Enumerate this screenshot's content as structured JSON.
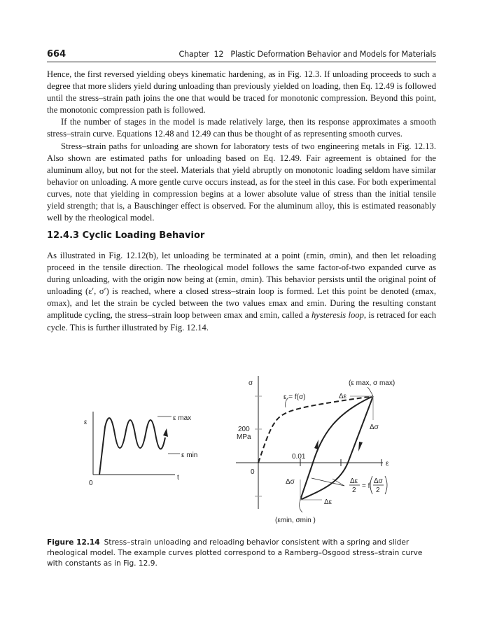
{
  "header": {
    "page_number": "664",
    "chapter": "Chapter  12   Plastic Deformation Behavior and Models for Materials"
  },
  "paragraphs": [
    "Hence, the first reversed yielding obeys kinematic hardening, as in Fig. 12.3. If unloading proceeds to such a degree that more sliders yield during unloading than previously yielded on loading, then Eq. 12.49 is followed until the stress–strain path joins the one that would be traced for monotonic compression. Beyond this point, the monotonic compression path is followed.",
    "If the number of stages in the model is made relatively large, then its response approximates a smooth stress–strain curve. Equations 12.48 and 12.49 can thus be thought of as representing smooth curves.",
    "Stress–strain paths for unloading are shown for laboratory tests of two engineering metals in Fig. 12.13. Also shown are estimated paths for unloading based on Eq. 12.49. Fair agreement is obtained for the aluminum alloy, but not for the steel. Materials that yield abruptly on monotonic loading seldom have similar behavior on unloading. A more gentle curve occurs instead, as for the steel in this case. For both experimental curves, note that yielding in compression begins at a lower absolute value of stress than the initial tensile yield strength; that is, a Bauschinger effect is observed. For the aluminum alloy, this is estimated reasonably well by the rheological model."
  ],
  "section_title": "12.4.3 Cyclic Loading Behavior",
  "section_paragraph": {
    "before_italic": "As illustrated in Fig. 12.12(b), let unloading be terminated at a point (εmin, σmin), and then let reloading proceed in the tensile direction. The rheological model follows the same factor-of-two expanded curve as during unloading, with the origin now being at (εmin, σmin). This behavior persists until the original point of unloading (ε′, σ′) is reached, where a closed stress–strain loop is formed. Let this point be denoted (εmax, σmax), and let the strain be cycled between the two values εmax and εmin. During the resulting constant amplitude cycling, the stress–strain loop between εmax and εmin, called a ",
    "italic": "hysteresis loop",
    "after_italic": ", is retraced for each cycle. This is further illustrated by Fig. 12.14."
  },
  "figure": {
    "left": {
      "y_label": "ε",
      "x_label": "t",
      "origin": "0",
      "max_label": "ε max",
      "min_label": "ε min"
    },
    "right": {
      "y_label": "σ",
      "x_label": "ε",
      "origin": "0",
      "stress_tick": "200",
      "stress_unit": "MPa",
      "strain_tick": "0.01",
      "curve_label": "ε = f(σ)",
      "max_point": "(ε max, σ max)",
      "min_point": "(εmin, σmin )",
      "delta_eps": "Δε",
      "delta_sigma": "Δσ",
      "loop_eq_lhs_num": "Δε",
      "loop_eq_lhs_den": "2",
      "loop_eq_mid": "= f",
      "loop_eq_rhs_num": "Δσ",
      "loop_eq_rhs_den": "2"
    }
  },
  "caption": {
    "label": "Figure 12.14",
    "text": "Stress–strain unloading and reloading behavior consistent with a spring and slider rheological model. The example curves plotted correspond to a Ramberg–Osgood stress–strain curve with constants as in Fig. 12.9."
  }
}
